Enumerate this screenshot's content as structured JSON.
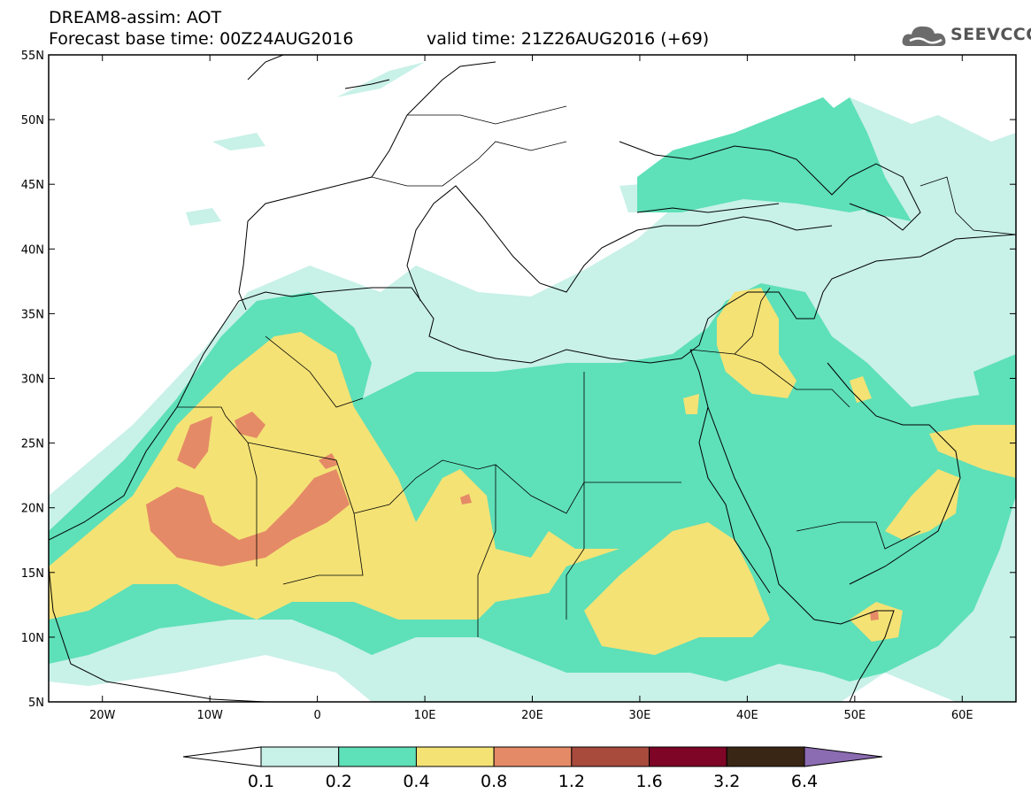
{
  "header": {
    "title": "DREAM8-assim: AOT",
    "base_time": "Forecast base time: 00Z24AUG2016",
    "valid_time": "valid time: 21Z26AUG2016 (+69)"
  },
  "logo": {
    "text": "SEEVCCC",
    "icon": "cloud-logo-icon"
  },
  "map": {
    "lon_range": [
      -25,
      65
    ],
    "lat_range": [
      5,
      55
    ],
    "lon_ticks": [
      {
        "label": "20W",
        "value": -20
      },
      {
        "label": "10W",
        "value": -10
      },
      {
        "label": "0",
        "value": 0
      },
      {
        "label": "10E",
        "value": 10
      },
      {
        "label": "20E",
        "value": 20
      },
      {
        "label": "30E",
        "value": 30
      },
      {
        "label": "40E",
        "value": 40
      },
      {
        "label": "50E",
        "value": 50
      },
      {
        "label": "60E",
        "value": 60
      }
    ],
    "lat_ticks": [
      {
        "label": "5N",
        "value": 5
      },
      {
        "label": "10N",
        "value": 10
      },
      {
        "label": "15N",
        "value": 15
      },
      {
        "label": "20N",
        "value": 20
      },
      {
        "label": "25N",
        "value": 25
      },
      {
        "label": "30N",
        "value": 30
      },
      {
        "label": "35N",
        "value": 35
      },
      {
        "label": "40N",
        "value": 40
      },
      {
        "label": "45N",
        "value": 45
      },
      {
        "label": "50N",
        "value": 50
      },
      {
        "label": "55N",
        "value": 55
      }
    ]
  },
  "colorbar": {
    "bins": [
      "#ffffff",
      "#c8f1e8",
      "#5ee0b8",
      "#f4e275",
      "#e58a66",
      "#a84a3c",
      "#7e0526",
      "#3a2614",
      "#8b6bb1"
    ],
    "labels": [
      "0.1",
      "0.2",
      "0.4",
      "0.8",
      "1.2",
      "1.6",
      "3.2",
      "6.4"
    ]
  },
  "colors": {
    "aot_0_1": "#c8f1e8",
    "aot_0_2": "#5ee0b8",
    "aot_0_4": "#f4e275",
    "aot_0_8": "#e58a66"
  }
}
